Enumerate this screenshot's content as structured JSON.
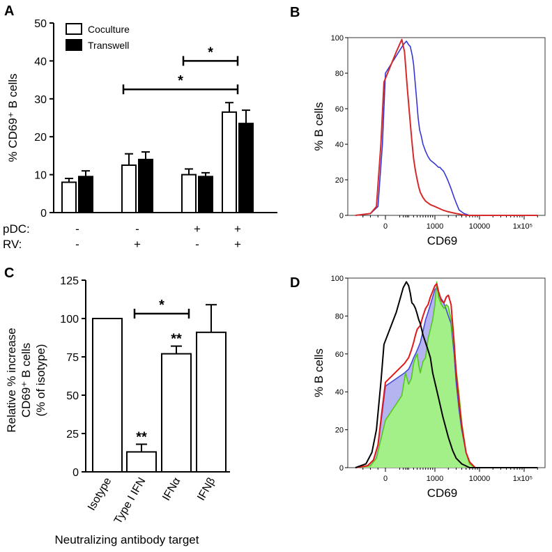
{
  "panels": {
    "A": {
      "letter": "A"
    },
    "B": {
      "letter": "B"
    },
    "C": {
      "letter": "C"
    },
    "D": {
      "letter": "D"
    }
  },
  "chart_data": [
    {
      "id": "A",
      "type": "bar",
      "ylabel": "% CD69⁺ B cells",
      "ylim": [
        0,
        50
      ],
      "yticks": [
        "0",
        "10",
        "20",
        "30",
        "40",
        "50"
      ],
      "series": [
        {
          "name": "Coculture",
          "color": "#ffffff",
          "values": [
            8,
            12.5,
            10,
            26.5
          ],
          "errors": [
            1,
            3,
            1.5,
            2.5
          ]
        },
        {
          "name": "Transwell",
          "color": "#000000",
          "values": [
            9.5,
            14,
            9.5,
            23.5
          ],
          "errors": [
            1.5,
            2,
            1,
            3.5
          ]
        }
      ],
      "condition_rows": [
        {
          "label": "pDC:",
          "values": [
            "-",
            "-",
            "+",
            "+"
          ]
        },
        {
          "label": "RV:",
          "values": [
            "-",
            "+",
            "-",
            "+"
          ]
        }
      ],
      "significance": [
        {
          "from_group": 2,
          "to_group": 3,
          "y": 40,
          "label": "*"
        },
        {
          "from_group": 1,
          "to_group": 3,
          "y": 32.5,
          "label": "*"
        }
      ]
    },
    {
      "id": "B",
      "type": "line",
      "xlabel": "CD69",
      "ylabel": "% B cells",
      "ylim": [
        0,
        100
      ],
      "yticks": [
        "0",
        "20",
        "40",
        "60",
        "80",
        "100"
      ],
      "xticks": [
        "0",
        "1000",
        "10000",
        "1x10⁵"
      ],
      "xtick_values": [
        0,
        1000,
        10000,
        100000
      ],
      "series": [
        {
          "name": "blue",
          "color": "#3535d6",
          "points": [
            [
              -200,
              0
            ],
            [
              -100,
              1
            ],
            [
              -50,
              5
            ],
            [
              -20,
              40
            ],
            [
              0,
              80
            ],
            [
              40,
              96
            ],
            [
              70,
              98
            ],
            [
              100,
              96
            ],
            [
              130,
              95
            ],
            [
              170,
              90
            ],
            [
              200,
              85
            ],
            [
              240,
              75
            ],
            [
              280,
              66
            ],
            [
              330,
              55
            ],
            [
              380,
              48
            ],
            [
              430,
              45
            ],
            [
              500,
              40
            ],
            [
              550,
              38
            ],
            [
              600,
              36
            ],
            [
              700,
              33
            ],
            [
              800,
              31
            ],
            [
              900,
              30
            ],
            [
              1000,
              29
            ],
            [
              1100,
              28
            ],
            [
              1200,
              27
            ],
            [
              1300,
              27
            ],
            [
              1400,
              26
            ],
            [
              1550,
              25
            ],
            [
              1700,
              23
            ],
            [
              1850,
              21
            ],
            [
              2000,
              19
            ],
            [
              2300,
              15
            ],
            [
              2700,
              10
            ],
            [
              3000,
              7
            ],
            [
              3500,
              3
            ],
            [
              4500,
              1
            ],
            [
              6000,
              0
            ],
            [
              10000,
              0
            ],
            [
              200000,
              0
            ]
          ]
        },
        {
          "name": "red",
          "color": "#d62a2a",
          "points": [
            [
              -200,
              0
            ],
            [
              -100,
              1
            ],
            [
              -60,
              5
            ],
            [
              -30,
              40
            ],
            [
              -10,
              75
            ],
            [
              10,
              92
            ],
            [
              30,
              99
            ],
            [
              50,
              92
            ],
            [
              80,
              72
            ],
            [
              120,
              55
            ],
            [
              160,
              42
            ],
            [
              200,
              32
            ],
            [
              250,
              25
            ],
            [
              300,
              20
            ],
            [
              350,
              16
            ],
            [
              400,
              13
            ],
            [
              500,
              10
            ],
            [
              600,
              8
            ],
            [
              800,
              6
            ],
            [
              1000,
              5
            ],
            [
              1500,
              3
            ],
            [
              2000,
              2
            ],
            [
              3000,
              1
            ],
            [
              5000,
              0
            ],
            [
              200000,
              0
            ]
          ]
        }
      ]
    },
    {
      "id": "C",
      "type": "bar",
      "xlabel": "Neutralizing antibody target",
      "ylabel_lines": [
        "Relative % increase",
        "CD69⁺ B cells",
        "(% of isotype)"
      ],
      "ylim": [
        0,
        125
      ],
      "yticks": [
        "0",
        "25",
        "50",
        "75",
        "100",
        "125"
      ],
      "categories": [
        "Isotype",
        "Type I IFN",
        "IFNα",
        "IFNβ"
      ],
      "values": [
        100,
        13,
        77,
        91
      ],
      "errors": [
        0,
        5,
        5,
        18
      ],
      "annotations": [
        "",
        "**",
        "**",
        ""
      ],
      "significance": [
        {
          "from": 1,
          "to": 2,
          "y": 105,
          "label": "*"
        }
      ]
    },
    {
      "id": "D",
      "type": "area",
      "xlabel": "CD69",
      "ylabel": "% B cells",
      "ylim": [
        0,
        100
      ],
      "yticks": [
        "0",
        "20",
        "40",
        "60",
        "80",
        "100"
      ],
      "xticks": [
        "0",
        "1000",
        "10000",
        "1x10⁵"
      ],
      "xtick_values": [
        0,
        1000,
        10000,
        100000
      ],
      "series": [
        {
          "name": "blue-filled",
          "color": "#4848d8",
          "fill": "#b4b4f0",
          "points": [
            [
              -200,
              0
            ],
            [
              -120,
              1
            ],
            [
              -80,
              4
            ],
            [
              -50,
              12
            ],
            [
              -20,
              30
            ],
            [
              0,
              43
            ],
            [
              50,
              50
            ],
            [
              100,
              52
            ],
            [
              150,
              55
            ],
            [
              200,
              58
            ],
            [
              250,
              60
            ],
            [
              300,
              62
            ],
            [
              400,
              66
            ],
            [
              500,
              72
            ],
            [
              600,
              78
            ],
            [
              700,
              82
            ],
            [
              800,
              86
            ],
            [
              900,
              90
            ],
            [
              1000,
              94
            ],
            [
              1100,
              95
            ],
            [
              1200,
              92
            ],
            [
              1300,
              90
            ],
            [
              1500,
              88
            ],
            [
              1700,
              85
            ],
            [
              2000,
              80
            ],
            [
              2300,
              76
            ],
            [
              2700,
              60
            ],
            [
              3000,
              45
            ],
            [
              3500,
              30
            ],
            [
              4000,
              20
            ],
            [
              5000,
              8
            ],
            [
              6000,
              3
            ],
            [
              8000,
              0
            ],
            [
              200000,
              0
            ]
          ]
        },
        {
          "name": "green-filled",
          "color": "#55c81e",
          "fill": "#a2f087",
          "points": [
            [
              -200,
              0
            ],
            [
              -100,
              1
            ],
            [
              -60,
              5
            ],
            [
              -30,
              15
            ],
            [
              0,
              25
            ],
            [
              30,
              38
            ],
            [
              60,
              50
            ],
            [
              100,
              44
            ],
            [
              150,
              47
            ],
            [
              200,
              55
            ],
            [
              250,
              58
            ],
            [
              300,
              60
            ],
            [
              350,
              54
            ],
            [
              400,
              50
            ],
            [
              450,
              53
            ],
            [
              500,
              56
            ],
            [
              600,
              58
            ],
            [
              700,
              68
            ],
            [
              800,
              73
            ],
            [
              900,
              78
            ],
            [
              1000,
              86
            ],
            [
              1100,
              98
            ],
            [
              1200,
              90
            ],
            [
              1400,
              86
            ],
            [
              1600,
              84
            ],
            [
              1800,
              86
            ],
            [
              2000,
              85
            ],
            [
              2300,
              78
            ],
            [
              2700,
              64
            ],
            [
              3000,
              52
            ],
            [
              3500,
              38
            ],
            [
              4000,
              24
            ],
            [
              5000,
              8
            ],
            [
              6000,
              2
            ],
            [
              8000,
              0
            ],
            [
              200000,
              0
            ]
          ]
        },
        {
          "name": "red",
          "color": "#e01818",
          "points": [
            [
              -200,
              0
            ],
            [
              -120,
              1
            ],
            [
              -80,
              4
            ],
            [
              -50,
              12
            ],
            [
              -20,
              32
            ],
            [
              0,
              45
            ],
            [
              50,
              55
            ],
            [
              100,
              58
            ],
            [
              150,
              62
            ],
            [
              200,
              66
            ],
            [
              250,
              70
            ],
            [
              300,
              73
            ],
            [
              400,
              75
            ],
            [
              500,
              80
            ],
            [
              600,
              84
            ],
            [
              700,
              86
            ],
            [
              800,
              90
            ],
            [
              900,
              93
            ],
            [
              1000,
              96
            ],
            [
              1100,
              97
            ],
            [
              1200,
              93
            ],
            [
              1400,
              88
            ],
            [
              1600,
              87
            ],
            [
              1800,
              90
            ],
            [
              2000,
              91
            ],
            [
              2300,
              86
            ],
            [
              2700,
              66
            ],
            [
              3000,
              50
            ],
            [
              3500,
              34
            ],
            [
              4000,
              22
            ],
            [
              5000,
              8
            ],
            [
              6000,
              3
            ],
            [
              8000,
              0
            ],
            [
              200000,
              0
            ]
          ]
        },
        {
          "name": "black",
          "color": "#000000",
          "points": [
            [
              -200,
              0
            ],
            [
              -130,
              2
            ],
            [
              -90,
              8
            ],
            [
              -60,
              20
            ],
            [
              -30,
              45
            ],
            [
              -10,
              65
            ],
            [
              10,
              82
            ],
            [
              40,
              95
            ],
            [
              70,
              98
            ],
            [
              100,
              96
            ],
            [
              130,
              92
            ],
            [
              160,
              87
            ],
            [
              200,
              86
            ],
            [
              250,
              84
            ],
            [
              300,
              81
            ],
            [
              350,
              78
            ],
            [
              400,
              76
            ],
            [
              450,
              73
            ],
            [
              500,
              70
            ],
            [
              600,
              66
            ],
            [
              700,
              62
            ],
            [
              800,
              58
            ],
            [
              900,
              50
            ],
            [
              1000,
              45
            ],
            [
              1200,
              37
            ],
            [
              1500,
              27
            ],
            [
              2000,
              16
            ],
            [
              2500,
              9
            ],
            [
              3000,
              5
            ],
            [
              4000,
              2
            ],
            [
              6000,
              0
            ],
            [
              10000,
              0
            ],
            [
              200000,
              0
            ]
          ]
        }
      ]
    }
  ]
}
